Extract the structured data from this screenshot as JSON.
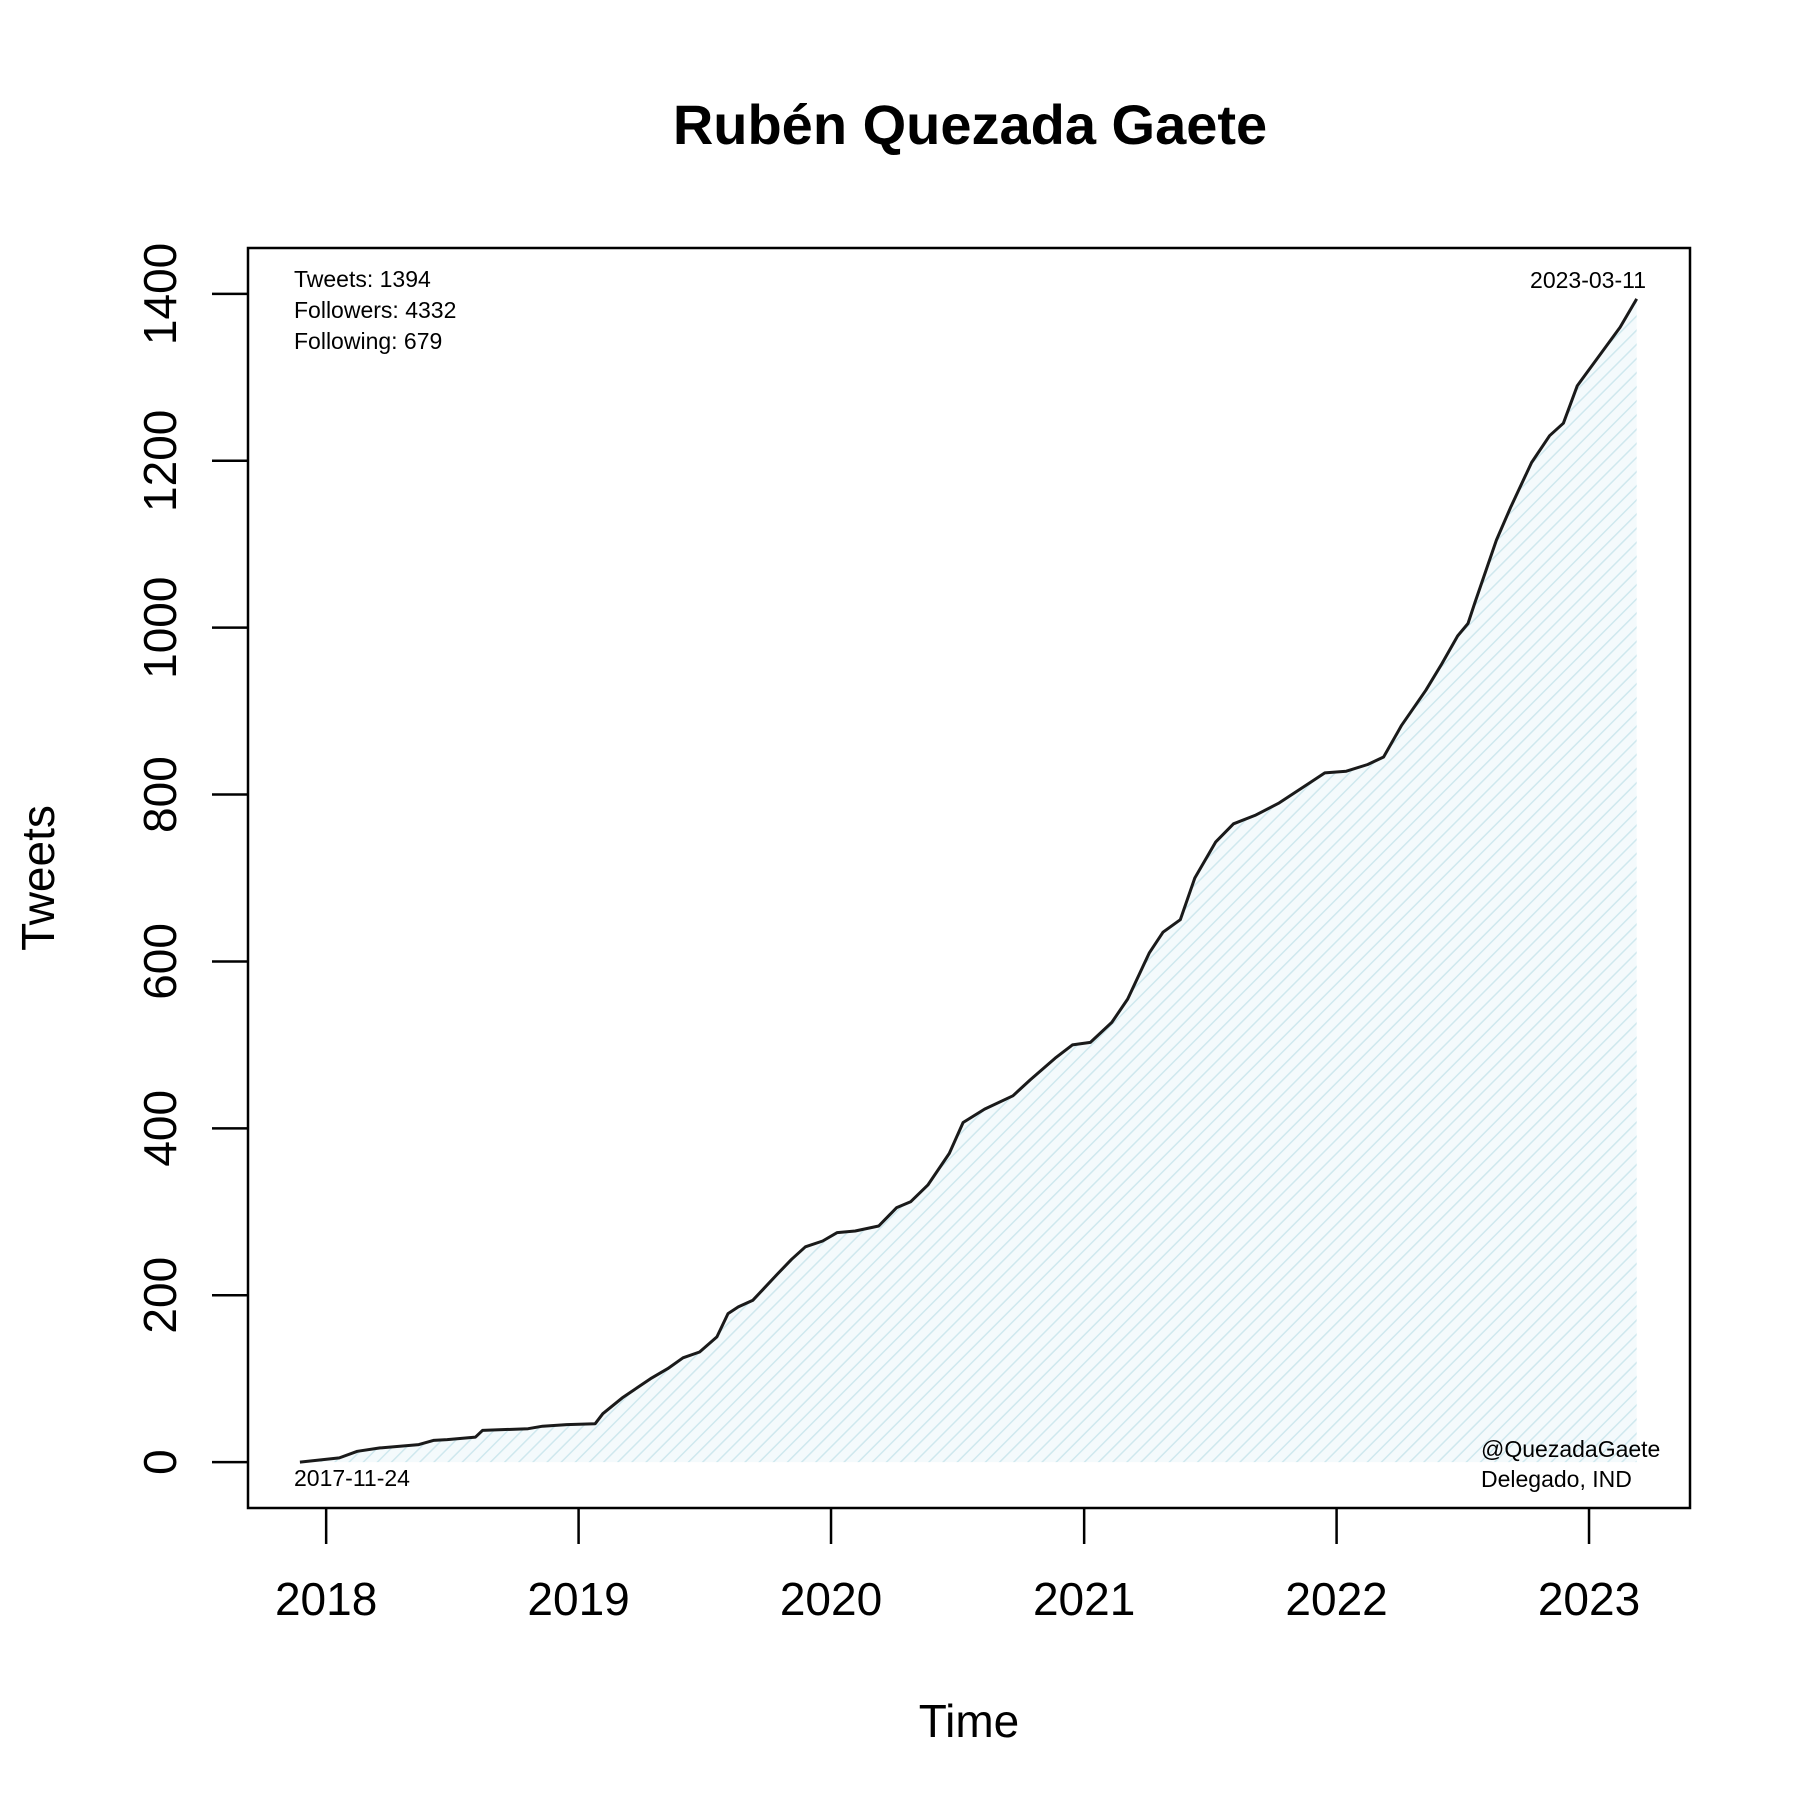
{
  "chart_data": {
    "type": "area",
    "title": "Rubén Quezada Gaete",
    "xlabel": "Time",
    "ylabel": "Tweets",
    "x_ticks": [
      "2018",
      "2019",
      "2020",
      "2021",
      "2022",
      "2023"
    ],
    "y_ticks": [
      "0",
      "200",
      "400",
      "600",
      "800",
      "1000",
      "1200",
      "1400"
    ],
    "xlim": [
      "2017-09-10",
      "2023-05-27"
    ],
    "ylim": [
      -55,
      1455
    ],
    "grid": false,
    "legend": "none",
    "colors": {
      "line": "#1a1a1a",
      "fill": "#cfe8ee",
      "axes": "#000000"
    },
    "annotations": {
      "stats": [
        "Tweets: 1394",
        "Followers: 4332",
        "Following: 679"
      ],
      "start_date": "2017-11-24",
      "end_date": "2023-03-11",
      "handle": "@QuezadaGaete",
      "role": "Delegado, IND"
    },
    "series": [
      {
        "x": [
          "2017-11-24",
          "2018-01-20",
          "2018-02-15",
          "2018-03-20",
          "2018-05-15",
          "2018-06-05",
          "2018-06-25",
          "2018-08-05",
          "2018-08-15",
          "2018-10-20",
          "2018-11-10",
          "2018-12-15",
          "2019-01-25",
          "2019-02-05",
          "2019-03-05",
          "2019-04-15",
          "2019-05-10",
          "2019-06-01",
          "2019-06-25",
          "2019-07-20",
          "2019-08-05",
          "2019-08-20",
          "2019-09-10",
          "2019-10-15",
          "2019-11-05",
          "2019-11-25",
          "2019-12-20",
          "2020-01-10",
          "2020-02-05",
          "2020-03-10",
          "2020-04-05",
          "2020-04-25",
          "2020-05-20",
          "2020-06-20",
          "2020-07-10",
          "2020-08-10",
          "2020-09-20",
          "2020-10-15",
          "2020-11-20",
          "2020-12-15",
          "2021-01-10",
          "2021-02-10",
          "2021-03-05",
          "2021-04-05",
          "2021-04-25",
          "2021-05-20",
          "2021-06-10",
          "2021-07-10",
          "2021-08-05",
          "2021-09-05",
          "2021-10-10",
          "2021-11-25",
          "2021-12-15",
          "2022-01-15",
          "2022-02-15",
          "2022-03-10",
          "2022-04-05",
          "2022-05-10",
          "2022-06-01",
          "2022-06-25",
          "2022-07-10",
          "2022-07-20",
          "2022-08-20",
          "2022-09-10",
          "2022-10-10",
          "2022-11-05",
          "2022-11-25",
          "2022-12-15",
          "2023-01-15",
          "2023-02-15",
          "2023-03-11"
        ],
        "y": [
          0,
          5,
          13,
          17,
          21,
          26,
          27,
          30,
          38,
          40,
          43,
          45,
          46,
          58,
          77,
          100,
          112,
          125,
          132,
          150,
          178,
          186,
          194,
          225,
          243,
          258,
          265,
          275,
          277,
          283,
          305,
          312,
          332,
          370,
          407,
          423,
          439,
          458,
          484,
          500,
          503,
          527,
          555,
          610,
          635,
          650,
          700,
          743,
          765,
          775,
          790,
          815,
          826,
          828,
          836,
          845,
          883,
          925,
          955,
          990,
          1005,
          1030,
          1105,
          1145,
          1198,
          1230,
          1245,
          1290,
          1325,
          1360,
          1394
        ]
      }
    ]
  }
}
